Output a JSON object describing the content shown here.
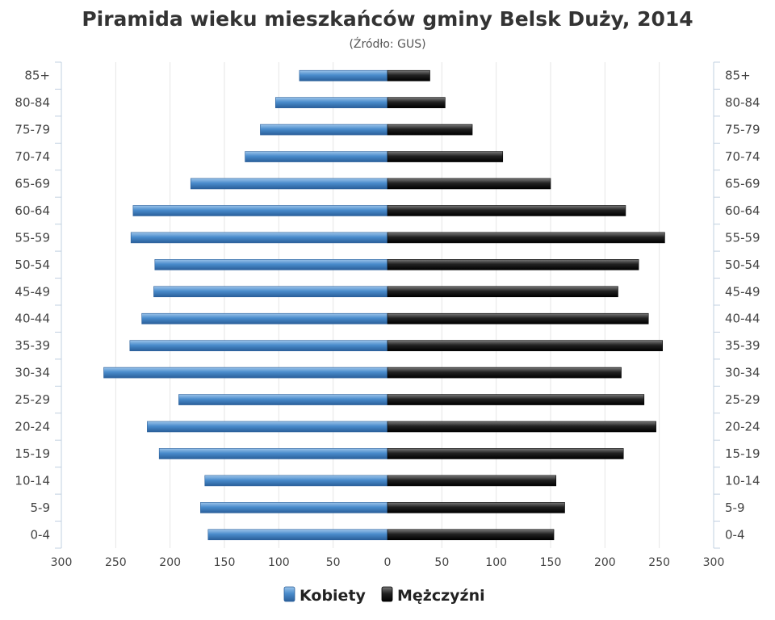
{
  "chart_data": {
    "type": "bar",
    "orientation": "horizontal-pyramid",
    "title": "Piramida wieku mieszkańców gminy Belsk Duży, 2014",
    "subtitle": "(Źródło: GUS)",
    "categories": [
      "0-4",
      "5-9",
      "10-14",
      "15-19",
      "20-24",
      "25-29",
      "30-34",
      "35-39",
      "40-44",
      "45-49",
      "50-54",
      "55-59",
      "60-64",
      "65-69",
      "70-74",
      "75-79",
      "80-84",
      "85+"
    ],
    "xlim": [
      -300,
      300
    ],
    "xticks": [
      "300",
      "250",
      "200",
      "150",
      "100",
      "50",
      "0",
      "50",
      "100",
      "150",
      "200",
      "250",
      "300"
    ],
    "series": [
      {
        "name": "Kobiety",
        "color": "#3a78b8",
        "side": "left",
        "values": [
          165,
          172,
          168,
          210,
          221,
          192,
          261,
          237,
          226,
          215,
          214,
          236,
          234,
          181,
          131,
          117,
          103,
          81
        ]
      },
      {
        "name": "Mężczyźni",
        "color": "#1a1a1a",
        "side": "right",
        "values": [
          153,
          163,
          155,
          217,
          247,
          236,
          215,
          253,
          240,
          212,
          231,
          255,
          219,
          150,
          106,
          78,
          53,
          39
        ]
      }
    ],
    "grid": true,
    "legend": "bottom-center"
  }
}
